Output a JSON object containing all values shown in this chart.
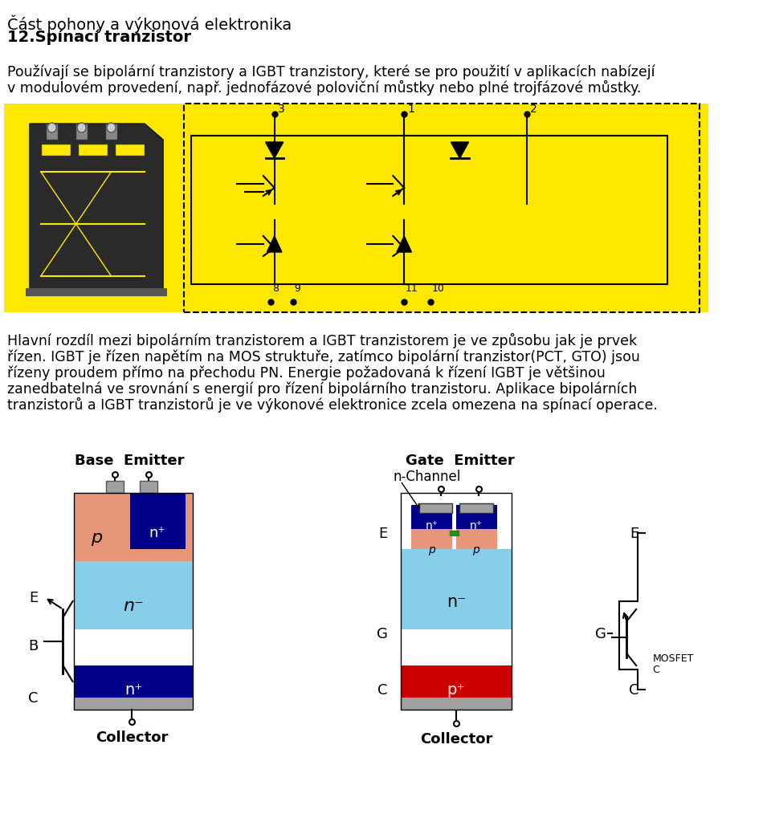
{
  "bg_color": "#ffffff",
  "title1": "Část pohony a výkonová elektronika",
  "title2": "12.Spínací tranzistor",
  "para1_line1": "Používají se bipolární tranzistory a IGBT tranzistory, které se pro použití v aplikacích nabízejí",
  "para1_line2": "v modulovém provedení, např. jednofázové poloviční můstky nebo plné trojfázové můstky.",
  "para2_line1": "Hlavní rozdíl mezi bipolárním tranzistorem a IGBT tranzistorem je ve způsobu jak je prvek",
  "para2_line2": "řízen. IGBT je řízen napětím na MOS struktuře, zatímco bipolární tranzistor(PCT, GTO) jsou",
  "para2_line3": "řízeny proudem přímo na přechodu PN. Energie požadovaná k řízení IGBT je většinou",
  "para2_line4": "zanedbatelná ve srovnání s energií pro řízení bipolárního tranzistoru. Aplikace bipolárních",
  "para2_line5": "tranzistorů a IGBT tranzistorů je ve výkonové elektronice zcela omezena na spínací operace.",
  "yellow_bg": "#FFE800",
  "light_blue": "#ADD8E6",
  "dark_blue": "#00008B",
  "salmon": "#E8967A",
  "red": "#CC0000",
  "gray": "#A0A0A0",
  "green": "#228B22"
}
